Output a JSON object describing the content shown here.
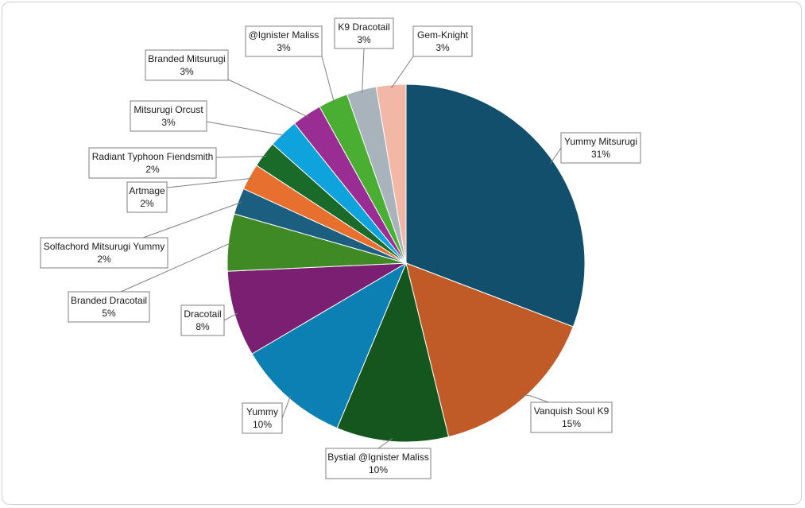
{
  "chart_data": {
    "type": "pie",
    "title": "",
    "slices": [
      {
        "label": "Yummy Mitsurugi",
        "pct_label": "31%",
        "value": 31,
        "color": "#124f6c"
      },
      {
        "label": "Vanquish Soul K9",
        "pct_label": "15%",
        "value": 15.5,
        "color": "#c05a26"
      },
      {
        "label": "Bystial @Ignister Maliss",
        "pct_label": "10%",
        "value": 10.2,
        "color": "#14561e"
      },
      {
        "label": "Yummy",
        "pct_label": "10%",
        "value": 10.3,
        "color": "#0c80b2"
      },
      {
        "label": "Dracotail",
        "pct_label": "8%",
        "value": 7.8,
        "color": "#7b1f73"
      },
      {
        "label": "Branded Dracotail",
        "pct_label": "5%",
        "value": 5.2,
        "color": "#3f8a25"
      },
      {
        "label": "Solfachord Mitsurugi Yummy",
        "pct_label": "2%",
        "value": 2.4,
        "color": "#1b5e80"
      },
      {
        "label": "Artmage",
        "pct_label": "2%",
        "value": 2.4,
        "color": "#e8702f"
      },
      {
        "label": "Radiant Typhoon Fiendsmith",
        "pct_label": "2%",
        "value": 2.4,
        "color": "#1a6a2a"
      },
      {
        "label": "Mitsurugi Orcust",
        "pct_label": "3%",
        "value": 2.7,
        "color": "#0ea3dc"
      },
      {
        "label": "Branded Mitsurugi",
        "pct_label": "3%",
        "value": 2.7,
        "color": "#9a2d94"
      },
      {
        "label": "@Ignister Maliss",
        "pct_label": "3%",
        "value": 2.7,
        "color": "#4aae33"
      },
      {
        "label": "K9 Dracotail",
        "pct_label": "3%",
        "value": 2.7,
        "color": "#a9b3bc"
      },
      {
        "label": "Gem-Knight",
        "pct_label": "3%",
        "value": 2.7,
        "color": "#f2b7a6"
      }
    ]
  }
}
